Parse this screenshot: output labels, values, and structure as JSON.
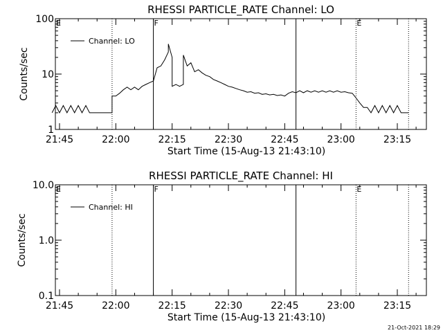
{
  "chart_data": [
    {
      "type": "line",
      "title": "RHESSI PARTICLE_RATE Channel: LO",
      "xlabel": "Start Time (15-Aug-13 21:43:10)",
      "ylabel": "Counts/sec",
      "y_scale": "log",
      "ylim": [
        1,
        100
      ],
      "y_ticks": [
        1,
        10,
        100
      ],
      "y_tick_labels": [
        "1",
        "10",
        "100"
      ],
      "x_ticks": [
        "21:45",
        "22:00",
        "22:15",
        "22:30",
        "22:45",
        "23:00",
        "23:15"
      ],
      "legend": {
        "position": "top-left",
        "entries": [
          "Channel: LO"
        ]
      },
      "markers": [
        {
          "time": "21:59",
          "style": "dotted",
          "label": ""
        },
        {
          "time": "22:10",
          "style": "solid",
          "label": "F"
        },
        {
          "time": "22:48",
          "style": "solid",
          "label": ""
        },
        {
          "time": "23:04",
          "style": "dotted",
          "label": "E"
        },
        {
          "time": "23:18",
          "style": "dotted",
          "label": ""
        }
      ],
      "corner_labels": [
        {
          "time": "21:43",
          "label": "E"
        }
      ],
      "series": [
        {
          "name": "Channel: LO",
          "points": [
            [
              "21:43",
              2
            ],
            [
              "21:44",
              2.7
            ],
            [
              "21:45",
              2
            ],
            [
              "21:46",
              2.7
            ],
            [
              "21:47",
              2
            ],
            [
              "21:48",
              2.7
            ],
            [
              "21:49",
              2
            ],
            [
              "21:50",
              2.7
            ],
            [
              "21:51",
              2
            ],
            [
              "21:52",
              2.7
            ],
            [
              "21:53",
              2
            ],
            [
              "21:54",
              2
            ],
            [
              "21:55",
              2
            ],
            [
              "21:56",
              2
            ],
            [
              "21:57",
              2
            ],
            [
              "21:58",
              2
            ],
            [
              "21:59",
              2
            ],
            [
              "21:59",
              4
            ],
            [
              "22:00",
              4
            ],
            [
              "22:01",
              4.5
            ],
            [
              "22:02",
              5.2
            ],
            [
              "22:03",
              5.8
            ],
            [
              "22:04",
              5.2
            ],
            [
              "22:05",
              5.8
            ],
            [
              "22:06",
              5.2
            ],
            [
              "22:07",
              6
            ],
            [
              "22:08",
              6.5
            ],
            [
              "22:09",
              7
            ],
            [
              "22:10",
              7.5
            ],
            [
              "22:11",
              13
            ],
            [
              "22:12",
              14
            ],
            [
              "22:13",
              18
            ],
            [
              "22:14",
              25
            ],
            [
              "22:14",
              35
            ],
            [
              "22:15",
              20
            ],
            [
              "22:15",
              6
            ],
            [
              "22:16",
              6.5
            ],
            [
              "22:17",
              6
            ],
            [
              "22:18",
              6.5
            ],
            [
              "22:18",
              22
            ],
            [
              "22:19",
              14
            ],
            [
              "22:20",
              16
            ],
            [
              "22:21",
              11
            ],
            [
              "22:22",
              12
            ],
            [
              "22:23",
              10.5
            ],
            [
              "22:24",
              9.5
            ],
            [
              "22:25",
              9
            ],
            [
              "22:26",
              8
            ],
            [
              "22:27",
              7.5
            ],
            [
              "22:28",
              7
            ],
            [
              "22:29",
              6.5
            ],
            [
              "22:30",
              6
            ],
            [
              "22:31",
              5.8
            ],
            [
              "22:32",
              5.5
            ],
            [
              "22:33",
              5.2
            ],
            [
              "22:34",
              5
            ],
            [
              "22:35",
              4.7
            ],
            [
              "22:36",
              4.8
            ],
            [
              "22:37",
              4.5
            ],
            [
              "22:38",
              4.6
            ],
            [
              "22:39",
              4.3
            ],
            [
              "22:40",
              4.4
            ],
            [
              "22:41",
              4.2
            ],
            [
              "22:42",
              4.3
            ],
            [
              "22:43",
              4.1
            ],
            [
              "22:44",
              4.2
            ],
            [
              "22:45",
              4
            ],
            [
              "22:46",
              4.5
            ],
            [
              "22:47",
              4.8
            ],
            [
              "22:48",
              4.6
            ],
            [
              "22:49",
              5
            ],
            [
              "22:50",
              4.6
            ],
            [
              "22:51",
              5
            ],
            [
              "22:52",
              4.7
            ],
            [
              "22:53",
              5
            ],
            [
              "22:54",
              4.7
            ],
            [
              "22:55",
              5
            ],
            [
              "22:56",
              4.7
            ],
            [
              "22:57",
              5
            ],
            [
              "22:58",
              4.7
            ],
            [
              "22:59",
              5
            ],
            [
              "23:00",
              4.7
            ],
            [
              "23:01",
              4.8
            ],
            [
              "23:02",
              4.6
            ],
            [
              "23:03",
              4.5
            ],
            [
              "23:04",
              3.7
            ],
            [
              "23:05",
              3
            ],
            [
              "23:06",
              2.5
            ],
            [
              "23:07",
              2.5
            ],
            [
              "23:08",
              2
            ],
            [
              "23:09",
              2.7
            ],
            [
              "23:10",
              2
            ],
            [
              "23:11",
              2.7
            ],
            [
              "23:12",
              2
            ],
            [
              "23:13",
              2.7
            ],
            [
              "23:14",
              2
            ],
            [
              "23:15",
              2.7
            ],
            [
              "23:16",
              2
            ],
            [
              "23:17",
              2
            ],
            [
              "23:18",
              2
            ]
          ]
        }
      ]
    },
    {
      "type": "line",
      "title": "RHESSI PARTICLE_RATE Channel: HI",
      "xlabel": "Start Time (15-Aug-13 21:43:10)",
      "ylabel": "Counts/sec",
      "y_scale": "log",
      "ylim": [
        0.1,
        10
      ],
      "y_ticks": [
        0.1,
        1,
        10
      ],
      "y_tick_labels": [
        "0.1",
        "1.0",
        "10.0"
      ],
      "x_ticks": [
        "21:45",
        "22:00",
        "22:15",
        "22:30",
        "22:45",
        "23:00",
        "23:15"
      ],
      "legend": {
        "position": "top-left",
        "entries": [
          "Channel: HI"
        ]
      },
      "markers": [
        {
          "time": "21:59",
          "style": "dotted",
          "label": ""
        },
        {
          "time": "22:10",
          "style": "solid",
          "label": "F"
        },
        {
          "time": "22:48",
          "style": "solid",
          "label": ""
        },
        {
          "time": "23:04",
          "style": "dotted",
          "label": "E"
        },
        {
          "time": "23:18",
          "style": "dotted",
          "label": ""
        }
      ],
      "corner_labels": [
        {
          "time": "21:43",
          "label": "E"
        }
      ],
      "series": [
        {
          "name": "Channel: HI",
          "points": []
        }
      ]
    }
  ],
  "footer": {
    "timestamp": "21-Oct-2021 18:29"
  }
}
